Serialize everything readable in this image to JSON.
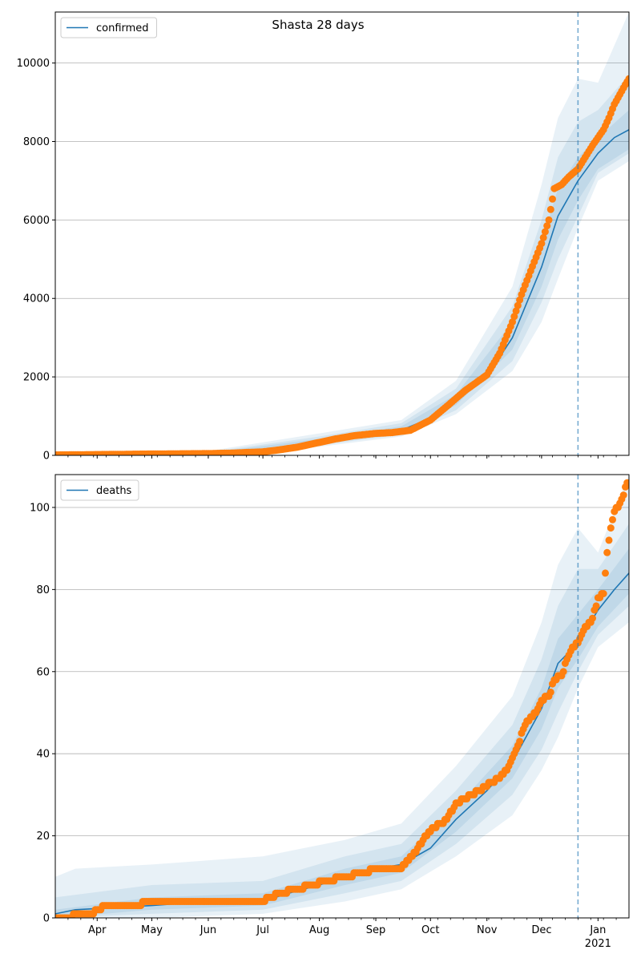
{
  "chart_data": {
    "title": "Shasta 28 days",
    "x_tick_labels": [
      "Apr",
      "May",
      "Jun",
      "Jul",
      "Aug",
      "Sep",
      "Oct",
      "Nov",
      "Dec",
      "Jan"
    ],
    "x_year_label": "2021",
    "x_range": [
      "2020-03-09",
      "2021-01-18"
    ],
    "forecast_start": "2020-12-21",
    "colors": {
      "model": "#1f77b4",
      "observed": "#ff7f0e",
      "band": "#1f77b4",
      "grid": "#b0b0b0"
    },
    "panels": [
      {
        "type": "line",
        "name": "confirmed",
        "legend_label": "confirmed",
        "legend_position": "top-left",
        "ylim": [
          0,
          11300
        ],
        "y_ticks": [
          0,
          2000,
          4000,
          6000,
          8000,
          10000
        ],
        "grid": "horizontal",
        "model_median": [
          [
            "2020-03-09",
            10
          ],
          [
            "2020-04-15",
            25
          ],
          [
            "2020-06-01",
            40
          ],
          [
            "2020-07-01",
            100
          ],
          [
            "2020-07-20",
            220
          ],
          [
            "2020-08-01",
            350
          ],
          [
            "2020-08-15",
            480
          ],
          [
            "2020-09-01",
            560
          ],
          [
            "2020-09-15",
            640
          ],
          [
            "2020-10-01",
            950
          ],
          [
            "2020-10-15",
            1400
          ],
          [
            "2020-11-01",
            2000
          ],
          [
            "2020-11-15",
            3000
          ],
          [
            "2020-12-01",
            4800
          ],
          [
            "2020-12-10",
            6100
          ],
          [
            "2020-12-21",
            7000
          ],
          [
            "2021-01-01",
            7700
          ],
          [
            "2021-01-10",
            8100
          ],
          [
            "2021-01-18",
            8300
          ]
        ],
        "band_inner": [
          [
            "2020-03-09",
            0,
            20
          ],
          [
            "2020-06-01",
            30,
            60
          ],
          [
            "2020-08-01",
            300,
            420
          ],
          [
            "2020-09-15",
            580,
            740
          ],
          [
            "2020-10-15",
            1280,
            1550
          ],
          [
            "2020-11-15",
            2700,
            3400
          ],
          [
            "2020-12-01",
            4300,
            5400
          ],
          [
            "2020-12-10",
            5500,
            6800
          ],
          [
            "2020-12-21",
            6500,
            7600
          ],
          [
            "2021-01-01",
            7300,
            8100
          ],
          [
            "2021-01-18",
            7800,
            8800
          ]
        ],
        "band_mid": [
          [
            "2020-03-09",
            0,
            30
          ],
          [
            "2020-06-01",
            20,
            80
          ],
          [
            "2020-08-01",
            260,
            480
          ],
          [
            "2020-09-15",
            530,
            820
          ],
          [
            "2020-10-15",
            1150,
            1700
          ],
          [
            "2020-11-15",
            2400,
            3800
          ],
          [
            "2020-12-01",
            3900,
            6000
          ],
          [
            "2020-12-10",
            5000,
            7600
          ],
          [
            "2020-12-21",
            6100,
            8500
          ],
          [
            "2021-01-01",
            7200,
            8800
          ],
          [
            "2021-01-18",
            7700,
            9700
          ]
        ],
        "band_outer": [
          [
            "2020-03-09",
            0,
            45
          ],
          [
            "2020-06-01",
            10,
            110
          ],
          [
            "2020-08-01",
            220,
            560
          ],
          [
            "2020-09-15",
            480,
            900
          ],
          [
            "2020-10-15",
            1050,
            1900
          ],
          [
            "2020-11-15",
            2150,
            4300
          ],
          [
            "2020-12-01",
            3400,
            6900
          ],
          [
            "2020-12-10",
            4500,
            8600
          ],
          [
            "2020-12-21",
            5800,
            9600
          ],
          [
            "2021-01-01",
            7000,
            9500
          ],
          [
            "2021-01-18",
            7500,
            11300
          ]
        ],
        "observed": [
          [
            "2020-03-09",
            10
          ],
          [
            "2020-04-01",
            20
          ],
          [
            "2020-05-01",
            35
          ],
          [
            "2020-06-01",
            45
          ],
          [
            "2020-06-15",
            60
          ],
          [
            "2020-07-01",
            90
          ],
          [
            "2020-07-10",
            140
          ],
          [
            "2020-07-20",
            210
          ],
          [
            "2020-08-01",
            330
          ],
          [
            "2020-08-10",
            420
          ],
          [
            "2020-08-20",
            500
          ],
          [
            "2020-09-01",
            560
          ],
          [
            "2020-09-10",
            580
          ],
          [
            "2020-09-20",
            640
          ],
          [
            "2020-10-01",
            900
          ],
          [
            "2020-10-10",
            1250
          ],
          [
            "2020-10-20",
            1650
          ],
          [
            "2020-11-01",
            2050
          ],
          [
            "2020-11-08",
            2600
          ],
          [
            "2020-11-15",
            3400
          ],
          [
            "2020-11-20",
            4100
          ],
          [
            "2020-11-25",
            4700
          ],
          [
            "2020-12-01",
            5400
          ],
          [
            "2020-12-05",
            6000
          ],
          [
            "2020-12-08",
            6800
          ],
          [
            "2020-12-12",
            6900
          ],
          [
            "2020-12-16",
            7100
          ],
          [
            "2020-12-21",
            7300
          ],
          [
            "2020-12-25",
            7600
          ],
          [
            "2020-12-29",
            7900
          ],
          [
            "2021-01-01",
            8100
          ],
          [
            "2021-01-04",
            8300
          ],
          [
            "2021-01-07",
            8600
          ],
          [
            "2021-01-10",
            8950
          ],
          [
            "2021-01-13",
            9200
          ],
          [
            "2021-01-16",
            9450
          ],
          [
            "2021-01-18",
            9600
          ]
        ]
      },
      {
        "type": "line",
        "name": "deaths",
        "legend_label": "deaths",
        "legend_position": "top-left",
        "ylim": [
          0,
          108
        ],
        "y_ticks": [
          0,
          20,
          40,
          60,
          80,
          100
        ],
        "grid": "horizontal",
        "model_median": [
          [
            "2020-03-09",
            1
          ],
          [
            "2020-03-20",
            2
          ],
          [
            "2020-05-01",
            3
          ],
          [
            "2020-06-01",
            4
          ],
          [
            "2020-07-01",
            4
          ],
          [
            "2020-07-15",
            6
          ],
          [
            "2020-08-01",
            8
          ],
          [
            "2020-08-15",
            10
          ],
          [
            "2020-09-01",
            12
          ],
          [
            "2020-09-15",
            13
          ],
          [
            "2020-10-01",
            17
          ],
          [
            "2020-10-15",
            24
          ],
          [
            "2020-11-01",
            31
          ],
          [
            "2020-11-15",
            38
          ],
          [
            "2020-12-01",
            51
          ],
          [
            "2020-12-10",
            62
          ],
          [
            "2020-12-21",
            67
          ],
          [
            "2021-01-01",
            75
          ],
          [
            "2021-01-10",
            80
          ],
          [
            "2021-01-18",
            84
          ]
        ],
        "band_inner": [
          [
            "2020-03-09",
            0,
            2
          ],
          [
            "2020-05-01",
            2,
            5
          ],
          [
            "2020-07-01",
            3,
            6
          ],
          [
            "2020-08-15",
            8,
            12
          ],
          [
            "2020-09-15",
            11,
            15
          ],
          [
            "2020-10-15",
            21,
            27
          ],
          [
            "2020-11-15",
            34,
            42
          ],
          [
            "2020-12-01",
            46,
            56
          ],
          [
            "2020-12-10",
            56,
            68
          ],
          [
            "2020-12-21",
            63,
            74
          ],
          [
            "2021-01-01",
            71,
            80
          ],
          [
            "2021-01-18",
            79,
            90
          ]
        ],
        "band_mid": [
          [
            "2020-03-09",
            0,
            5
          ],
          [
            "2020-05-01",
            1,
            8
          ],
          [
            "2020-07-01",
            2,
            9
          ],
          [
            "2020-08-15",
            6,
            15
          ],
          [
            "2020-09-15",
            9,
            18
          ],
          [
            "2020-10-15",
            18,
            31
          ],
          [
            "2020-11-15",
            30,
            47
          ],
          [
            "2020-12-01",
            41,
            63
          ],
          [
            "2020-12-10",
            50,
            76
          ],
          [
            "2020-12-21",
            60,
            85
          ],
          [
            "2021-01-01",
            69,
            85
          ],
          [
            "2021-01-18",
            76,
            96
          ]
        ],
        "band_outer": [
          [
            "2020-03-09",
            0,
            10
          ],
          [
            "2020-03-20",
            0,
            12
          ],
          [
            "2020-05-01",
            0,
            13
          ],
          [
            "2020-07-01",
            1,
            15
          ],
          [
            "2020-08-15",
            4,
            19
          ],
          [
            "2020-09-15",
            7,
            23
          ],
          [
            "2020-10-15",
            15,
            37
          ],
          [
            "2020-11-15",
            25,
            54
          ],
          [
            "2020-12-01",
            36,
            72
          ],
          [
            "2020-12-10",
            44,
            86
          ],
          [
            "2020-12-21",
            56,
            95
          ],
          [
            "2021-01-01",
            66,
            89
          ],
          [
            "2021-01-18",
            72,
            108
          ]
        ],
        "observed": [
          [
            "2020-03-09",
            0
          ],
          [
            "2020-03-28",
            1
          ],
          [
            "2020-04-03",
            2
          ],
          [
            "2020-04-05",
            3
          ],
          [
            "2020-04-25",
            3
          ],
          [
            "2020-04-27",
            4
          ],
          [
            "2020-06-20",
            4
          ],
          [
            "2020-06-30",
            4
          ],
          [
            "2020-07-05",
            5
          ],
          [
            "2020-07-10",
            6
          ],
          [
            "2020-07-20",
            7
          ],
          [
            "2020-07-28",
            8
          ],
          [
            "2020-08-05",
            9
          ],
          [
            "2020-08-15",
            10
          ],
          [
            "2020-08-25",
            11
          ],
          [
            "2020-09-01",
            12
          ],
          [
            "2020-09-15",
            12
          ],
          [
            "2020-09-18",
            14
          ],
          [
            "2020-09-23",
            16
          ],
          [
            "2020-09-28",
            20
          ],
          [
            "2020-10-03",
            22
          ],
          [
            "2020-10-10",
            24
          ],
          [
            "2020-10-15",
            28
          ],
          [
            "2020-10-20",
            29
          ],
          [
            "2020-10-28",
            31
          ],
          [
            "2020-11-03",
            33
          ],
          [
            "2020-11-08",
            34
          ],
          [
            "2020-11-12",
            36
          ],
          [
            "2020-11-18",
            42
          ],
          [
            "2020-11-22",
            47
          ],
          [
            "2020-11-28",
            50
          ],
          [
            "2020-12-01",
            53
          ],
          [
            "2020-12-05",
            54
          ],
          [
            "2020-12-08",
            58
          ],
          [
            "2020-12-12",
            59
          ],
          [
            "2020-12-15",
            63
          ],
          [
            "2020-12-18",
            66
          ],
          [
            "2020-12-21",
            67
          ],
          [
            "2020-12-24",
            70
          ],
          [
            "2020-12-29",
            73
          ],
          [
            "2021-01-01",
            78
          ],
          [
            "2021-01-04",
            79
          ],
          [
            "2021-01-06",
            89
          ],
          [
            "2021-01-08",
            95
          ],
          [
            "2021-01-10",
            99
          ],
          [
            "2021-01-13",
            101
          ],
          [
            "2021-01-15",
            103
          ],
          [
            "2021-01-17",
            106
          ]
        ]
      }
    ]
  }
}
